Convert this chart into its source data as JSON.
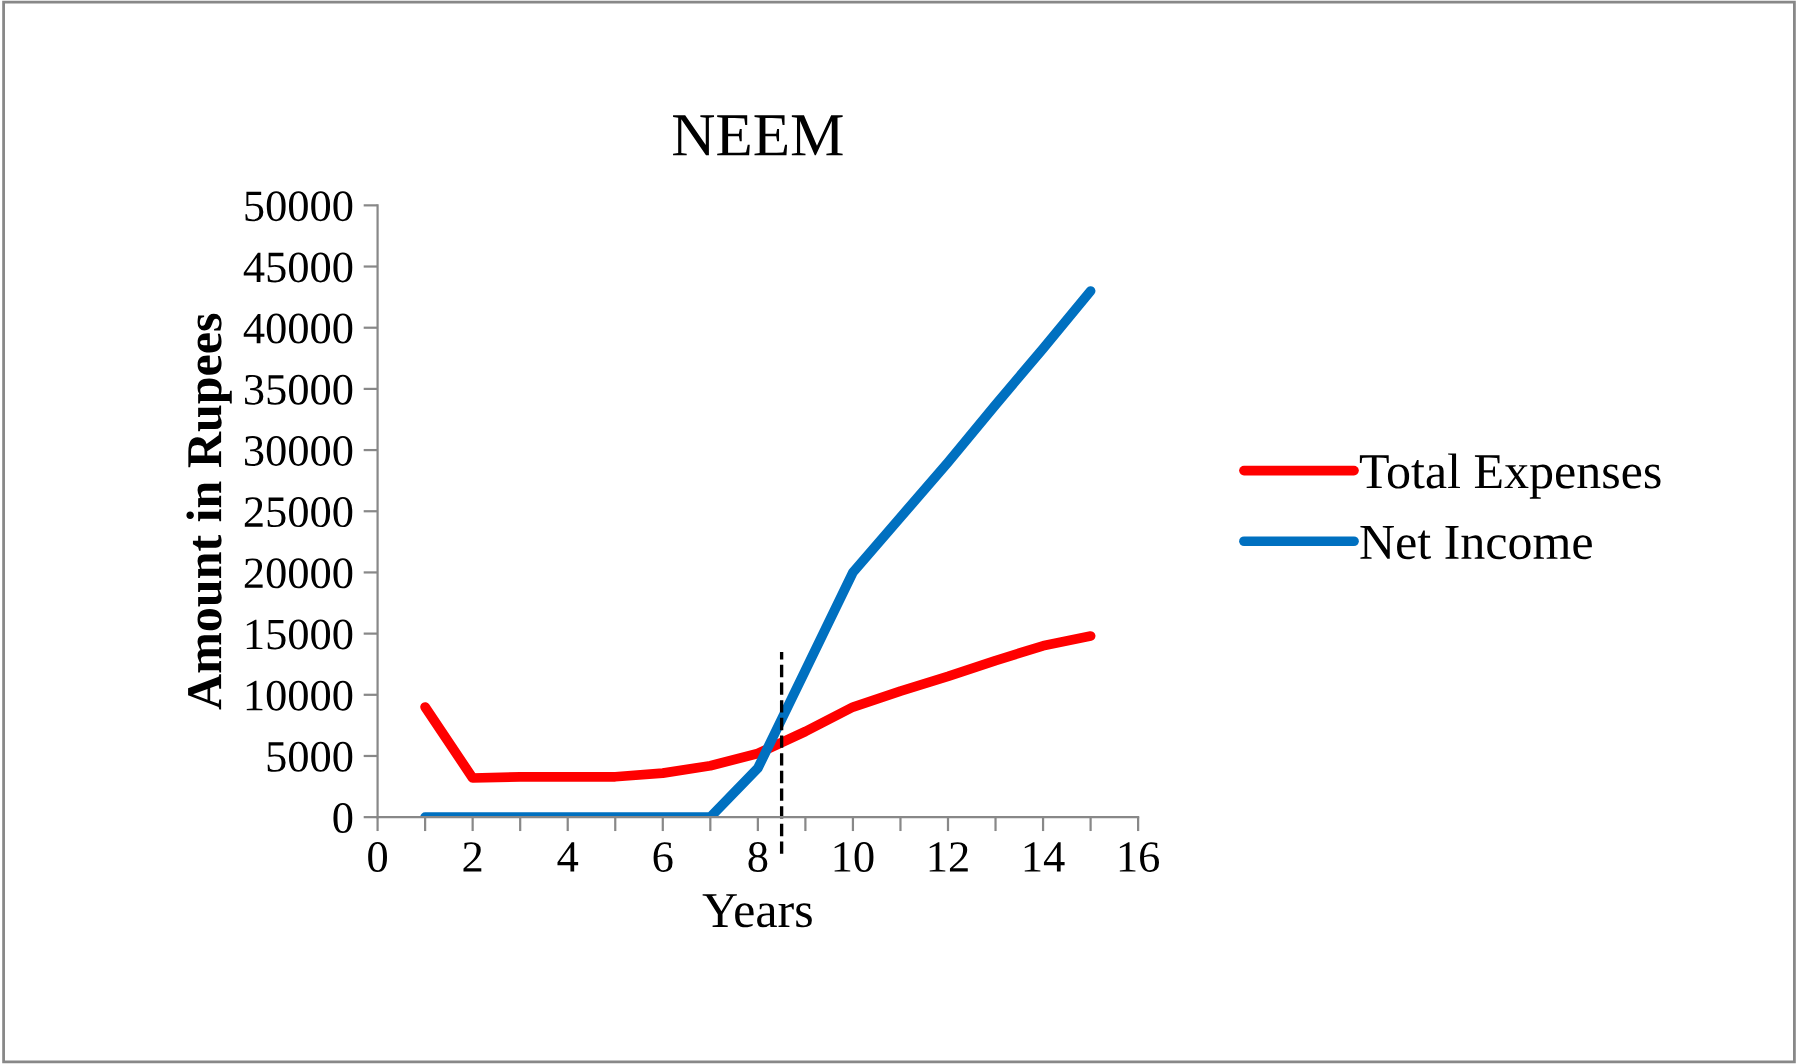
{
  "chart_data": {
    "type": "line",
    "title": "NEEM",
    "xlabel": "Years",
    "ylabel": "Amount in Rupees",
    "x": [
      1,
      2,
      3,
      4,
      5,
      6,
      7,
      8,
      9,
      10,
      11,
      12,
      13,
      14,
      15
    ],
    "series": [
      {
        "name": "Total Expenses",
        "color": "#ff0000",
        "values": [
          9000,
          3200,
          3300,
          3300,
          3300,
          3600,
          4200,
          5200,
          7000,
          9000,
          10300,
          11500,
          12800,
          14000,
          14800
        ]
      },
      {
        "name": "Net Income",
        "color": "#0070c0",
        "values": [
          0,
          0,
          0,
          0,
          0,
          0,
          0,
          4000,
          12000,
          20000,
          24500,
          29000,
          33700,
          38300,
          43000
        ]
      }
    ],
    "xlim": [
      0,
      16
    ],
    "xticks": [
      0,
      {
        "value": 1,
        "label": null
      },
      2,
      {
        "value": 3,
        "label": null
      },
      4,
      {
        "value": 5,
        "label": null
      },
      6,
      {
        "value": 7,
        "label": null
      },
      8,
      {
        "value": 9,
        "label": null
      },
      10,
      {
        "value": 11,
        "label": null
      },
      12,
      {
        "value": 13,
        "label": null
      },
      14,
      {
        "value": 15,
        "label": null
      },
      16
    ],
    "ylim": [
      0,
      50000
    ],
    "yticks": [
      0,
      5000,
      10000,
      15000,
      20000,
      25000,
      30000,
      35000,
      40000,
      45000,
      50000
    ],
    "ref_lines": [
      {
        "axis": "x",
        "value": 8.5,
        "color": "#000000",
        "line_style": "dashed"
      }
    ],
    "grid": false,
    "legend": "right",
    "marker": "none",
    "line_style": "solid"
  }
}
